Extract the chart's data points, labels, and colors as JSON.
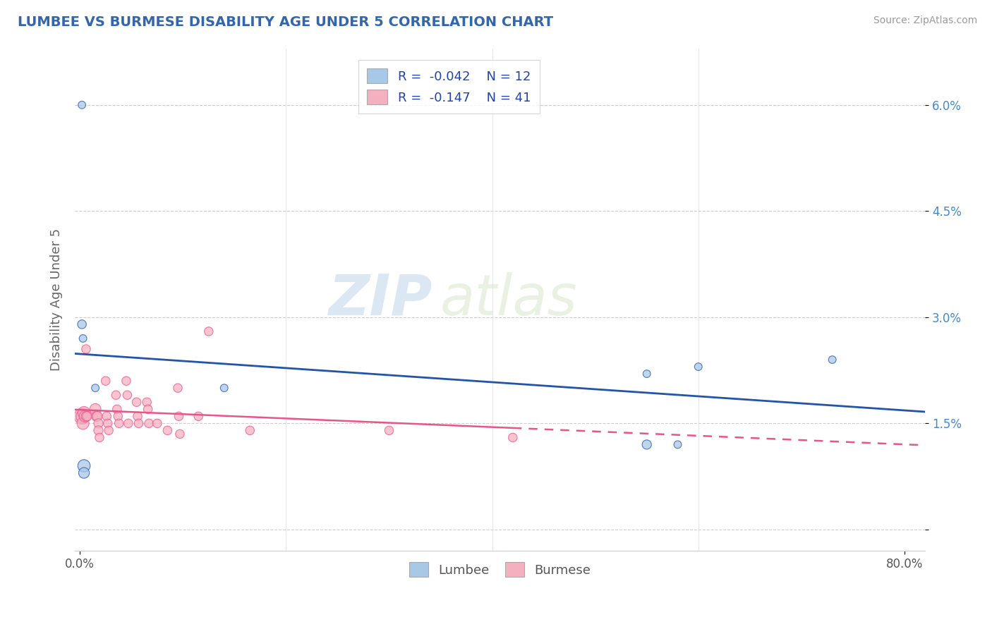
{
  "title": "LUMBEE VS BURMESE DISABILITY AGE UNDER 5 CORRELATION CHART",
  "source": "Source: ZipAtlas.com",
  "ylabel_label": "Disability Age Under 5",
  "lumbee_color": "#a8c8e8",
  "burmese_color": "#f5b0c0",
  "lumbee_line_color": "#2255aa",
  "burmese_line_color": "#e8558a",
  "lumbee_R": "-0.042",
  "lumbee_N": "12",
  "burmese_R": "-0.147",
  "burmese_N": "41",
  "watermark_zip": "ZIP",
  "watermark_atlas": "atlas",
  "lumbee_points": [
    [
      0.002,
      0.06
    ],
    [
      0.002,
      0.029
    ],
    [
      0.003,
      0.027
    ],
    [
      0.004,
      0.009
    ],
    [
      0.004,
      0.008
    ],
    [
      0.015,
      0.02
    ],
    [
      0.14,
      0.02
    ],
    [
      0.55,
      0.022
    ],
    [
      0.6,
      0.023
    ],
    [
      0.73,
      0.024
    ],
    [
      0.55,
      0.012
    ],
    [
      0.58,
      0.012
    ]
  ],
  "lumbee_sizes": [
    60,
    80,
    60,
    160,
    120,
    60,
    60,
    60,
    60,
    60,
    90,
    60
  ],
  "burmese_points": [
    [
      0.002,
      0.016
    ],
    [
      0.003,
      0.016
    ],
    [
      0.003,
      0.015
    ],
    [
      0.004,
      0.0165
    ],
    [
      0.005,
      0.016
    ],
    [
      0.006,
      0.016
    ],
    [
      0.006,
      0.0255
    ],
    [
      0.007,
      0.016
    ],
    [
      0.015,
      0.017
    ],
    [
      0.016,
      0.016
    ],
    [
      0.017,
      0.016
    ],
    [
      0.018,
      0.015
    ],
    [
      0.018,
      0.014
    ],
    [
      0.019,
      0.013
    ],
    [
      0.025,
      0.021
    ],
    [
      0.026,
      0.016
    ],
    [
      0.027,
      0.015
    ],
    [
      0.028,
      0.014
    ],
    [
      0.035,
      0.019
    ],
    [
      0.036,
      0.017
    ],
    [
      0.037,
      0.016
    ],
    [
      0.038,
      0.015
    ],
    [
      0.045,
      0.021
    ],
    [
      0.046,
      0.019
    ],
    [
      0.047,
      0.015
    ],
    [
      0.055,
      0.018
    ],
    [
      0.056,
      0.016
    ],
    [
      0.057,
      0.015
    ],
    [
      0.065,
      0.018
    ],
    [
      0.066,
      0.017
    ],
    [
      0.067,
      0.015
    ],
    [
      0.075,
      0.015
    ],
    [
      0.085,
      0.014
    ],
    [
      0.095,
      0.02
    ],
    [
      0.096,
      0.016
    ],
    [
      0.097,
      0.0135
    ],
    [
      0.115,
      0.016
    ],
    [
      0.125,
      0.028
    ],
    [
      0.165,
      0.014
    ],
    [
      0.3,
      0.014
    ],
    [
      0.42,
      0.013
    ]
  ],
  "burmese_sizes": [
    260,
    200,
    150,
    160,
    140,
    100,
    80,
    90,
    130,
    100,
    100,
    90,
    90,
    80,
    80,
    80,
    80,
    80,
    80,
    80,
    80,
    80,
    80,
    80,
    80,
    80,
    80,
    80,
    80,
    80,
    80,
    80,
    80,
    80,
    80,
    80,
    80,
    80,
    80,
    80,
    80
  ],
  "xlim": [
    -0.005,
    0.82
  ],
  "ylim": [
    -0.003,
    0.068
  ],
  "yticks": [
    0.0,
    0.015,
    0.03,
    0.045,
    0.06
  ],
  "ytick_labels": [
    "",
    "1.5%",
    "3.0%",
    "4.5%",
    "6.0%"
  ],
  "xtick_vals": [
    0.0,
    0.8
  ],
  "xtick_labels": [
    "0.0%",
    "80.0%"
  ],
  "grid_color": "#cccccc",
  "spine_color": "#cccccc",
  "yaxis_label_color": "#4488cc",
  "title_color": "#3366aa",
  "source_color": "#999999"
}
